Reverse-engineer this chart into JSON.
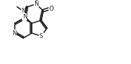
{
  "bg_color": "#ffffff",
  "line_color": "#1a1a1a",
  "lw": 1.1,
  "figsize": [
    1.86,
    0.91
  ],
  "dpi": 100,
  "xlim": [
    0,
    186
  ],
  "ylim": [
    0,
    91
  ]
}
